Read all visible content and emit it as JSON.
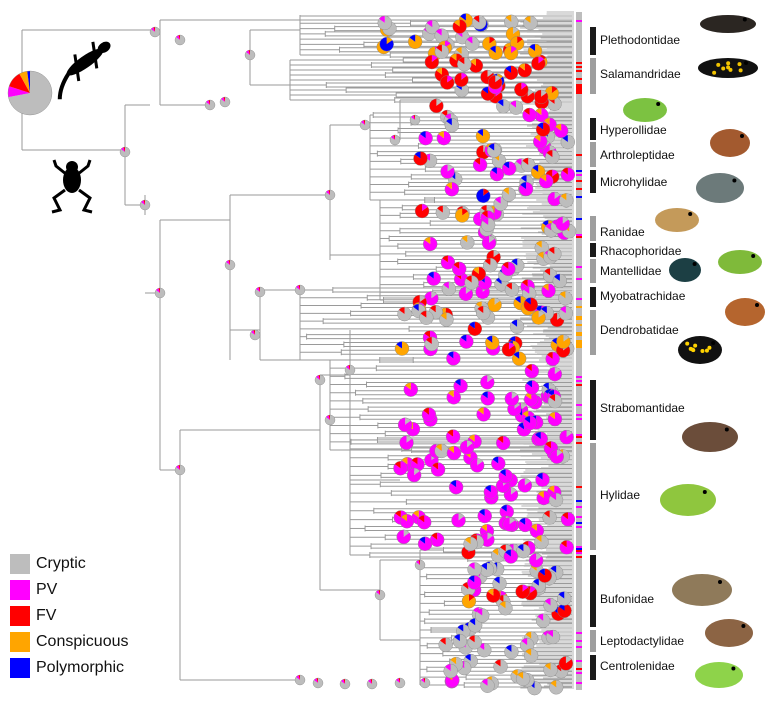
{
  "colors": {
    "cryptic": "#bdbdbd",
    "pv": "#ff00ff",
    "fv": "#ff0000",
    "conspicuous": "#ffa500",
    "polymorphic": "#0000ff",
    "bar_dark": "#1a1a1a",
    "bar_light": "#9e9e9e",
    "branch": "#9a9a9a"
  },
  "legend": [
    {
      "label": "Cryptic",
      "color": "#bdbdbd"
    },
    {
      "label": "PV",
      "color": "#ff00ff"
    },
    {
      "label": "FV",
      "color": "#ff0000"
    },
    {
      "label": "Conspicuous",
      "color": "#ffa500"
    },
    {
      "label": "Polymorphic",
      "color": "#0000ff"
    }
  ],
  "families": [
    {
      "name": "Plethodontidae",
      "bar": "dark"
    },
    {
      "name": "Salamandridae",
      "bar": "light"
    },
    {
      "name": "Hyperollidae",
      "bar": "dark"
    },
    {
      "name": "Arthroleptidae",
      "bar": "light"
    },
    {
      "name": "Microhylidae",
      "bar": "dark"
    },
    {
      "name": "Ranidae",
      "bar": "light"
    },
    {
      "name": "Rhacophoridae",
      "bar": "dark"
    },
    {
      "name": "Mantellidae",
      "bar": "light"
    },
    {
      "name": "Myobatrachidae",
      "bar": "dark"
    },
    {
      "name": "Dendrobatidae",
      "bar": "light"
    },
    {
      "name": "Strabomantidae",
      "bar": "dark"
    },
    {
      "name": "Hylidae",
      "bar": "light"
    },
    {
      "name": "Bufonidae",
      "bar": "dark"
    },
    {
      "name": "Leptodactylidae",
      "bar": "light"
    },
    {
      "name": "Centrolenidae",
      "bar": "dark"
    }
  ],
  "photos": [
    {
      "name": "salamander-photo"
    },
    {
      "name": "spotted-salamander-photo"
    },
    {
      "name": "reed-frog-photo"
    },
    {
      "name": "brown-frog-photo"
    },
    {
      "name": "narrowmouth-frog-photo"
    },
    {
      "name": "true-frog-photo"
    },
    {
      "name": "flying-frog-photo"
    },
    {
      "name": "mantella-photo"
    },
    {
      "name": "toadlet-photo"
    },
    {
      "name": "poison-frog-photo"
    },
    {
      "name": "rain-frog-photo"
    },
    {
      "name": "tree-frog-photo"
    },
    {
      "name": "toad-photo"
    },
    {
      "name": "leptodactylid-photo"
    },
    {
      "name": "glass-frog-photo"
    }
  ]
}
